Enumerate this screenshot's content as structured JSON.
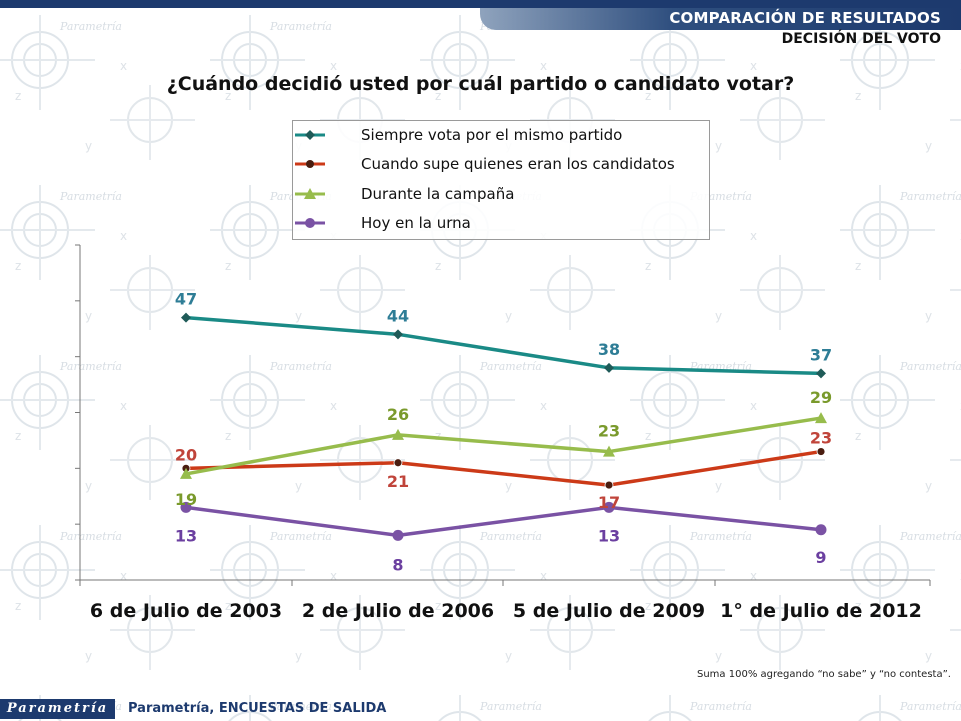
{
  "header": {
    "section_title": "COMPARACIÓN DE RESULTADOS",
    "subsection_title": "DECISIÓN DEL VOTO"
  },
  "question": "¿Cuándo decidió usted por cuál partido o candidato votar?",
  "footnote": "Suma 100%  agregando “no sabe” y “no contesta”.",
  "footer": {
    "logo_text": "Parametría",
    "source": "Parametría, ENCUESTAS DE SALIDA"
  },
  "chart_data": {
    "type": "line",
    "title": "",
    "xlabel": "",
    "ylabel": "",
    "categories": [
      "6 de Julio de 2003",
      "2 de Julio de 2006",
      "5 de Julio de 2009",
      "1° de Julio de 2012"
    ],
    "ylim": [
      0,
      60
    ],
    "legend_position": "top-center",
    "series": [
      {
        "name": "Siempre vota por el mismo partido",
        "values": [
          47,
          44,
          38,
          37
        ],
        "color": "#1a8a86",
        "marker": "diamond"
      },
      {
        "name": "Cuando supe quienes eran los candidatos",
        "values": [
          20,
          21,
          17,
          23
        ],
        "color": "#cc3a18",
        "marker": "circle"
      },
      {
        "name": "Durante la campaña",
        "values": [
          19,
          26,
          23,
          29
        ],
        "color": "#97bc4c",
        "marker": "triangle"
      },
      {
        "name": "Hoy en la urna",
        "values": [
          13,
          8,
          13,
          9
        ],
        "color": "#7a52a4",
        "marker": "circle"
      }
    ],
    "label_colors": [
      "#2e7d96",
      "#c0443a",
      "#7a9a2c",
      "#6b3fa0"
    ]
  }
}
